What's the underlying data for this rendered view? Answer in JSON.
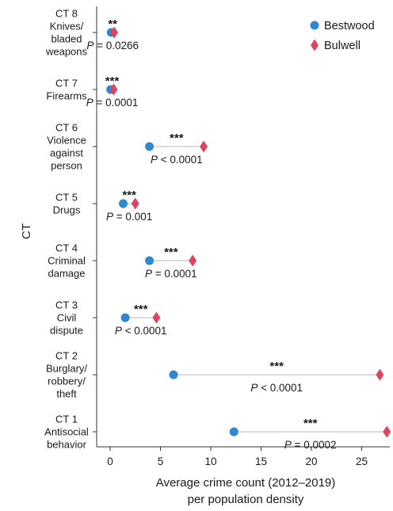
{
  "chart_data": {
    "type": "dot-plot",
    "xlabel_lines": [
      "Average crime count (2012–2019)",
      "per population density"
    ],
    "ylabel": "CT",
    "xlim": [
      -1.5,
      28
    ],
    "xticks": [
      0,
      5,
      10,
      15,
      20,
      25
    ],
    "tick_labels": [
      "0",
      "5",
      "10",
      "15",
      "20",
      "25"
    ],
    "legend_position": "top-right",
    "series": [
      {
        "name": "Bestwood",
        "marker": "circle",
        "color": "#2f86d1"
      },
      {
        "name": "Bulwell",
        "marker": "diamond",
        "color": "#e0435f"
      }
    ],
    "categories": [
      {
        "label_lines": [
          "CT 8",
          "Knives/",
          "bladed",
          "weapons"
        ],
        "bestwood": 0.1,
        "bulwell": 0.4,
        "sig": "**",
        "p_text": " = 0.0266"
      },
      {
        "label_lines": [
          "CT 7",
          "Firearms"
        ],
        "bestwood": 0.05,
        "bulwell": 0.35,
        "sig": "***",
        "p_text": " = 0.0001"
      },
      {
        "label_lines": [
          "CT 6",
          "Violence",
          "against",
          "person"
        ],
        "bestwood": 3.9,
        "bulwell": 9.3,
        "sig": "***",
        "p_text": " < 0.0001"
      },
      {
        "label_lines": [
          "CT 5",
          "Drugs"
        ],
        "bestwood": 1.3,
        "bulwell": 2.5,
        "sig": "***",
        "p_text": " = 0.001"
      },
      {
        "label_lines": [
          "CT 4",
          "Criminal",
          "damage"
        ],
        "bestwood": 3.9,
        "bulwell": 8.2,
        "sig": "***",
        "p_text": " = 0.0001"
      },
      {
        "label_lines": [
          "CT 3",
          "Civil",
          "dispute"
        ],
        "bestwood": 1.5,
        "bulwell": 4.6,
        "sig": "***",
        "p_text": " < 0.0001"
      },
      {
        "label_lines": [
          "CT 2",
          "Burglary/",
          "robbery/",
          "theft"
        ],
        "bestwood": 6.3,
        "bulwell": 26.8,
        "sig": "***",
        "p_text": " < 0.0001"
      },
      {
        "label_lines": [
          "CT 1",
          "Antisocial",
          "behavior"
        ],
        "bestwood": 12.3,
        "bulwell": 27.5,
        "sig": "***",
        "p_text": " = 0.0002"
      }
    ],
    "p_prefix": "P",
    "colors": {
      "line": "#cfcfcf",
      "axis": "#333333",
      "text": "#1a1a1a"
    }
  }
}
